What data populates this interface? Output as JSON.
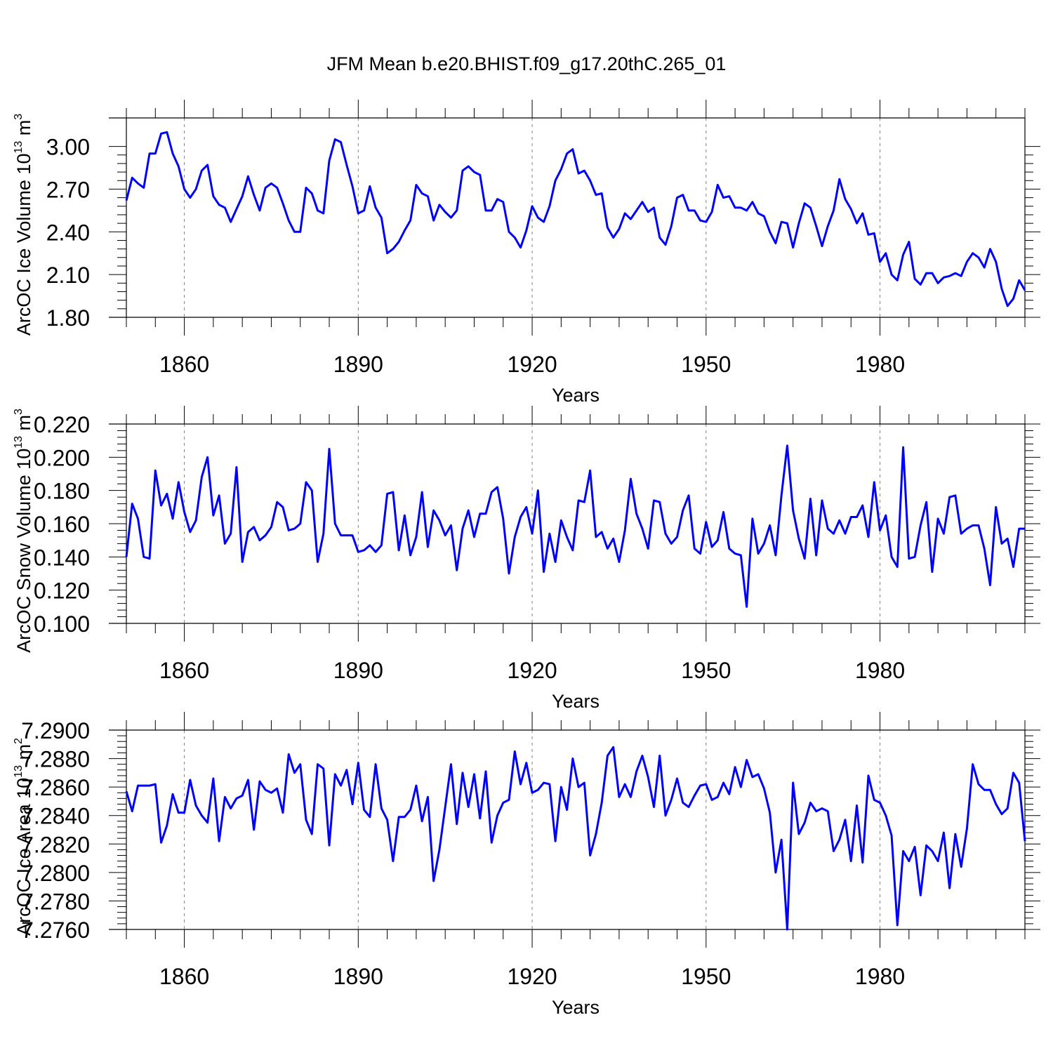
{
  "title": "JFM Mean b.e20.BHIST.f09_g17.20thC.265_01",
  "colors": {
    "line": "#0000ff",
    "axis": "#000000",
    "grid": "#808080"
  },
  "chart_data": [
    {
      "type": "line",
      "name": "ice-volume",
      "title": "JFM Mean b.e20.BHIST.f09_g17.20thC.265_01",
      "xlabel": "Years",
      "ylabel_main": "ArcOC Ice Volume 10",
      "ylabel_exp": "13",
      "ylabel_unit": " m",
      "ylabel_unit_exp": "3",
      "xlim": [
        1850,
        2005
      ],
      "ylim": [
        1.8,
        3.2
      ],
      "x_ticks": [
        1860,
        1890,
        1920,
        1950,
        1980
      ],
      "y_ticks": [
        1.8,
        2.1,
        2.4,
        2.7,
        3.0
      ],
      "y_tick_labels": [
        "1.80",
        "2.10",
        "2.40",
        "2.70",
        "3.00"
      ],
      "x_start": 1850,
      "series": [
        {
          "name": "Ice Volume",
          "values": [
            2.62,
            2.78,
            2.74,
            2.71,
            2.95,
            2.95,
            3.09,
            3.1,
            2.95,
            2.86,
            2.7,
            2.64,
            2.7,
            2.83,
            2.87,
            2.65,
            2.59,
            2.57,
            2.47,
            2.56,
            2.65,
            2.79,
            2.66,
            2.55,
            2.71,
            2.74,
            2.71,
            2.6,
            2.48,
            2.4,
            2.4,
            2.71,
            2.67,
            2.55,
            2.53,
            2.9,
            3.05,
            3.03,
            2.87,
            2.72,
            2.53,
            2.55,
            2.72,
            2.57,
            2.5,
            2.25,
            2.28,
            2.33,
            2.41,
            2.48,
            2.73,
            2.67,
            2.65,
            2.48,
            2.59,
            2.54,
            2.5,
            2.55,
            2.83,
            2.86,
            2.82,
            2.8,
            2.55,
            2.55,
            2.63,
            2.61,
            2.4,
            2.36,
            2.29,
            2.41,
            2.58,
            2.5,
            2.47,
            2.58,
            2.76,
            2.84,
            2.95,
            2.98,
            2.81,
            2.83,
            2.76,
            2.66,
            2.67,
            2.43,
            2.36,
            2.42,
            2.53,
            2.49,
            2.55,
            2.61,
            2.54,
            2.57,
            2.36,
            2.31,
            2.44,
            2.64,
            2.66,
            2.55,
            2.55,
            2.48,
            2.47,
            2.54,
            2.73,
            2.64,
            2.65,
            2.57,
            2.57,
            2.55,
            2.61,
            2.53,
            2.51,
            2.4,
            2.32,
            2.47,
            2.46,
            2.29,
            2.46,
            2.6,
            2.57,
            2.44,
            2.3,
            2.44,
            2.55,
            2.77,
            2.63,
            2.56,
            2.46,
            2.53,
            2.38,
            2.39,
            2.19,
            2.25,
            2.1,
            2.06,
            2.24,
            2.33,
            2.07,
            2.03,
            2.11,
            2.11,
            2.04,
            2.08,
            2.09,
            2.11,
            2.09,
            2.19,
            2.25,
            2.22,
            2.15,
            2.28,
            2.19,
            2.0,
            1.88,
            1.93,
            2.06,
            1.99
          ]
        }
      ]
    },
    {
      "type": "line",
      "name": "snow-volume",
      "xlabel": "Years",
      "ylabel_main": "ArcOC Snow Volume 10",
      "ylabel_exp": "13",
      "ylabel_unit": " m",
      "ylabel_unit_exp": "3",
      "xlim": [
        1850,
        2005
      ],
      "ylim": [
        0.1,
        0.22
      ],
      "x_ticks": [
        1860,
        1890,
        1920,
        1950,
        1980
      ],
      "y_ticks": [
        0.1,
        0.12,
        0.14,
        0.16,
        0.18,
        0.2,
        0.22
      ],
      "y_tick_labels": [
        "0.100",
        "0.120",
        "0.140",
        "0.160",
        "0.180",
        "0.200",
        "0.220"
      ],
      "x_start": 1850,
      "series": [
        {
          "name": "Snow Volume",
          "values": [
            0.14,
            0.172,
            0.163,
            0.14,
            0.139,
            0.192,
            0.171,
            0.178,
            0.163,
            0.185,
            0.167,
            0.155,
            0.162,
            0.188,
            0.2,
            0.165,
            0.177,
            0.148,
            0.154,
            0.194,
            0.137,
            0.155,
            0.158,
            0.15,
            0.153,
            0.158,
            0.173,
            0.17,
            0.156,
            0.157,
            0.16,
            0.185,
            0.18,
            0.137,
            0.154,
            0.205,
            0.16,
            0.153,
            0.153,
            0.153,
            0.143,
            0.144,
            0.147,
            0.143,
            0.147,
            0.178,
            0.179,
            0.144,
            0.165,
            0.141,
            0.152,
            0.179,
            0.146,
            0.168,
            0.162,
            0.153,
            0.159,
            0.132,
            0.157,
            0.168,
            0.152,
            0.166,
            0.166,
            0.179,
            0.182,
            0.163,
            0.13,
            0.152,
            0.164,
            0.17,
            0.154,
            0.18,
            0.131,
            0.154,
            0.137,
            0.162,
            0.152,
            0.144,
            0.174,
            0.173,
            0.192,
            0.152,
            0.155,
            0.145,
            0.151,
            0.137,
            0.156,
            0.187,
            0.166,
            0.157,
            0.145,
            0.174,
            0.173,
            0.154,
            0.148,
            0.152,
            0.168,
            0.177,
            0.145,
            0.142,
            0.161,
            0.146,
            0.15,
            0.167,
            0.145,
            0.142,
            0.141,
            0.11,
            0.163,
            0.142,
            0.148,
            0.159,
            0.141,
            0.177,
            0.207,
            0.168,
            0.151,
            0.139,
            0.175,
            0.141,
            0.174,
            0.157,
            0.154,
            0.162,
            0.154,
            0.164,
            0.164,
            0.171,
            0.152,
            0.185,
            0.156,
            0.165,
            0.14,
            0.134,
            0.206,
            0.139,
            0.14,
            0.159,
            0.173,
            0.131,
            0.163,
            0.154,
            0.176,
            0.177,
            0.154,
            0.157,
            0.159,
            0.159,
            0.145,
            0.123,
            0.17,
            0.148,
            0.151,
            0.134,
            0.157,
            0.157
          ]
        }
      ]
    },
    {
      "type": "line",
      "name": "ice-area",
      "xlabel": "Years",
      "ylabel_main": "ArcOC Ice Area 10",
      "ylabel_exp": "13",
      "ylabel_unit": " m",
      "ylabel_unit_exp": "2",
      "xlim": [
        1850,
        2005
      ],
      "ylim": [
        7.276,
        7.29
      ],
      "x_ticks": [
        1860,
        1890,
        1920,
        1950,
        1980
      ],
      "y_ticks": [
        7.276,
        7.278,
        7.28,
        7.282,
        7.284,
        7.286,
        7.288,
        7.29
      ],
      "y_tick_labels": [
        "7.2760",
        "7.2780",
        "7.2800",
        "7.2820",
        "7.2840",
        "7.2860",
        "7.2880",
        "7.2900"
      ],
      "x_start": 1850,
      "series": [
        {
          "name": "Ice Area",
          "values": [
            7.2857,
            7.2843,
            7.2861,
            7.2861,
            7.2861,
            7.2862,
            7.2821,
            7.2833,
            7.2855,
            7.2842,
            7.2842,
            7.2865,
            7.2847,
            7.284,
            7.2835,
            7.2866,
            7.2822,
            7.2853,
            7.2845,
            7.2852,
            7.2854,
            7.2865,
            7.283,
            7.2864,
            7.2858,
            7.2856,
            7.2859,
            7.2842,
            7.2883,
            7.287,
            7.2876,
            7.2837,
            7.2827,
            7.2876,
            7.2873,
            7.2819,
            7.2869,
            7.2861,
            7.2872,
            7.2848,
            7.2877,
            7.2844,
            7.2839,
            7.2876,
            7.2845,
            7.2837,
            7.2808,
            7.2839,
            7.2839,
            7.2844,
            7.2861,
            7.2836,
            7.2853,
            7.2794,
            7.2816,
            7.2846,
            7.2876,
            7.2834,
            7.287,
            7.2846,
            7.2869,
            7.2838,
            7.2871,
            7.2821,
            7.284,
            7.2849,
            7.2851,
            7.2885,
            7.2862,
            7.2877,
            7.2856,
            7.2858,
            7.2863,
            7.2862,
            7.2822,
            7.286,
            7.2844,
            7.288,
            7.286,
            7.2863,
            7.2812,
            7.2827,
            7.2849,
            7.2882,
            7.2888,
            7.2853,
            7.2862,
            7.2853,
            7.2871,
            7.2882,
            7.2867,
            7.2846,
            7.2882,
            7.284,
            7.2851,
            7.2866,
            7.2849,
            7.2846,
            7.2854,
            7.2861,
            7.2862,
            7.2851,
            7.2853,
            7.2863,
            7.2855,
            7.2874,
            7.286,
            7.2879,
            7.2867,
            7.2869,
            7.2859,
            7.2842,
            7.28,
            7.2823,
            7.276,
            7.2863,
            7.2827,
            7.2835,
            7.2849,
            7.2843,
            7.2845,
            7.2843,
            7.2815,
            7.2823,
            7.2837,
            7.2808,
            7.2847,
            7.2807,
            7.2868,
            7.2851,
            7.2849,
            7.284,
            7.2826,
            7.2763,
            7.2815,
            7.2808,
            7.2818,
            7.2784,
            7.2819,
            7.2815,
            7.2808,
            7.2828,
            7.2789,
            7.2827,
            7.2804,
            7.2831,
            7.2876,
            7.2862,
            7.2858,
            7.2858,
            7.2848,
            7.2841,
            7.2845,
            7.287,
            7.2863,
            7.2822
          ]
        }
      ]
    }
  ]
}
